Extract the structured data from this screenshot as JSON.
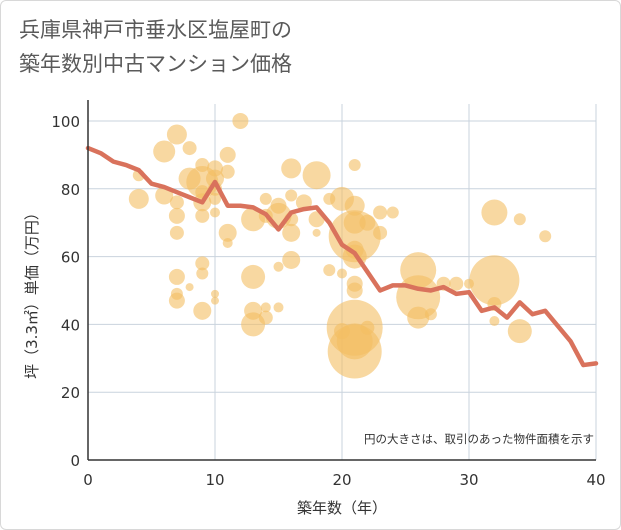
{
  "title_lines": [
    "兵庫県神戸市垂水区塩屋町の",
    "築年数別中古マンション価格"
  ],
  "chart_data": {
    "type": "scatter",
    "title": "兵庫県神戸市垂水区塩屋町の築年数別中古マンション価格",
    "xlabel": "築年数（年）",
    "ylabel": "坪（3.3㎡）単価（万円）",
    "xlim": [
      0,
      40
    ],
    "ylim": [
      0,
      105
    ],
    "xticks": [
      0,
      10,
      20,
      30,
      40
    ],
    "yticks": [
      0,
      20,
      40,
      60,
      80,
      100
    ],
    "grid": true,
    "annotation": "円の大きさは、取引のあった物件面積を示す",
    "colors": {
      "bubble": "#f3be62",
      "line": "#d9725c"
    },
    "series": [
      {
        "kind": "bubble",
        "points": [
          [
            4,
            77,
            10
          ],
          [
            4,
            84,
            6
          ],
          [
            6,
            91,
            11
          ],
          [
            6,
            78,
            9
          ],
          [
            7,
            96,
            10
          ],
          [
            7,
            76,
            7
          ],
          [
            7,
            72,
            8
          ],
          [
            7,
            67,
            7
          ],
          [
            7,
            54,
            8
          ],
          [
            7,
            49,
            6
          ],
          [
            7,
            47,
            8
          ],
          [
            8,
            51,
            4
          ],
          [
            8,
            92,
            7
          ],
          [
            8,
            83,
            11
          ],
          [
            9,
            87,
            7
          ],
          [
            9,
            82,
            16
          ],
          [
            9,
            79,
            7
          ],
          [
            9,
            76,
            9
          ],
          [
            9,
            72,
            7
          ],
          [
            9,
            58,
            7
          ],
          [
            9,
            55,
            6
          ],
          [
            9,
            44,
            9
          ],
          [
            10,
            86,
            8
          ],
          [
            10,
            83,
            9
          ],
          [
            10,
            80,
            7
          ],
          [
            10,
            77,
            6
          ],
          [
            10,
            73,
            5
          ],
          [
            10,
            49,
            4
          ],
          [
            10,
            47,
            4
          ],
          [
            11,
            90,
            8
          ],
          [
            11,
            85,
            7
          ],
          [
            11,
            67,
            9
          ],
          [
            11,
            64,
            5
          ],
          [
            12,
            100,
            8
          ],
          [
            13,
            71,
            12
          ],
          [
            13,
            54,
            12
          ],
          [
            13,
            44,
            9
          ],
          [
            13,
            40,
            12
          ],
          [
            14,
            77,
            6
          ],
          [
            14,
            72,
            7
          ],
          [
            14,
            45,
            5
          ],
          [
            14,
            42,
            7
          ],
          [
            15,
            75,
            8
          ],
          [
            15,
            72,
            13
          ],
          [
            15,
            57,
            5
          ],
          [
            15,
            45,
            5
          ],
          [
            16,
            86,
            10
          ],
          [
            16,
            78,
            6
          ],
          [
            16,
            71,
            7
          ],
          [
            16,
            67,
            9
          ],
          [
            16,
            59,
            9
          ],
          [
            17,
            76,
            8
          ],
          [
            18,
            84,
            14
          ],
          [
            18,
            71,
            8
          ],
          [
            18,
            67,
            4
          ],
          [
            19,
            77,
            6
          ],
          [
            19,
            56,
            6
          ],
          [
            20,
            77,
            12
          ],
          [
            20,
            55,
            5
          ],
          [
            20,
            38,
            8
          ],
          [
            21,
            87,
            6
          ],
          [
            21,
            75,
            10
          ],
          [
            21,
            70,
            11
          ],
          [
            21,
            66,
            26
          ],
          [
            21,
            62,
            9
          ],
          [
            21,
            60,
            12
          ],
          [
            21,
            52,
            8
          ],
          [
            21,
            50,
            8
          ],
          [
            21,
            39,
            28
          ],
          [
            21,
            35,
            18
          ],
          [
            21,
            32,
            27
          ],
          [
            22,
            39,
            7
          ],
          [
            22,
            70,
            8
          ],
          [
            23,
            73,
            7
          ],
          [
            23,
            67,
            7
          ],
          [
            24,
            73,
            6
          ],
          [
            26,
            56,
            18
          ],
          [
            26,
            48,
            22
          ],
          [
            26,
            42,
            11
          ],
          [
            27,
            43,
            6
          ],
          [
            28,
            52,
            7
          ],
          [
            29,
            52,
            7
          ],
          [
            30,
            52,
            5
          ],
          [
            32,
            73,
            13
          ],
          [
            32,
            53,
            25
          ],
          [
            32,
            46,
            7
          ],
          [
            32,
            41,
            5
          ],
          [
            34,
            71,
            6
          ],
          [
            34,
            38,
            12
          ],
          [
            36,
            66,
            6
          ]
        ]
      },
      {
        "kind": "line",
        "points": [
          [
            0,
            92
          ],
          [
            1,
            90.5
          ],
          [
            2,
            88
          ],
          [
            3,
            87
          ],
          [
            4,
            85.5
          ],
          [
            5,
            81.5
          ],
          [
            6,
            80.5
          ],
          [
            7,
            79
          ],
          [
            8,
            77.5
          ],
          [
            9,
            76
          ],
          [
            10,
            82
          ],
          [
            11,
            75
          ],
          [
            12,
            75
          ],
          [
            13,
            74.5
          ],
          [
            14,
            72.5
          ],
          [
            15,
            68
          ],
          [
            16,
            73
          ],
          [
            17,
            74
          ],
          [
            18,
            74.5
          ],
          [
            19,
            70
          ],
          [
            20,
            63.5
          ],
          [
            21,
            61
          ],
          [
            22,
            55.5
          ],
          [
            23,
            50
          ],
          [
            24,
            51.5
          ],
          [
            25,
            51.5
          ],
          [
            26,
            50.5
          ],
          [
            27,
            50
          ],
          [
            28,
            51
          ],
          [
            29,
            49
          ],
          [
            30,
            49.5
          ],
          [
            31,
            44
          ],
          [
            32,
            45
          ],
          [
            33,
            42
          ],
          [
            34,
            46.5
          ],
          [
            35,
            43
          ],
          [
            36,
            44
          ],
          [
            37,
            39.5
          ],
          [
            38,
            35
          ],
          [
            39,
            28
          ],
          [
            40,
            28.5
          ]
        ]
      }
    ]
  }
}
